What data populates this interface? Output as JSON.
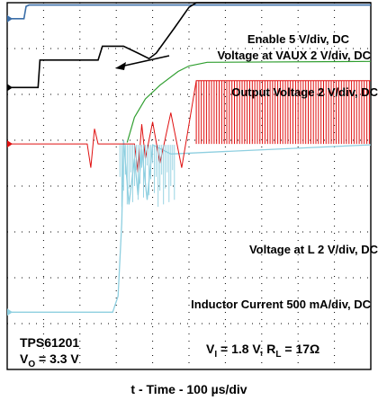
{
  "chart_data": {
    "type": "line",
    "title": "",
    "xlabel": "t - Time - 100 µs/div",
    "ylabel": "",
    "grid": true,
    "xlim": [
      0,
      10
    ],
    "ylim": [
      0,
      8
    ],
    "series": [
      {
        "name": "Enable 5 V/div, DC",
        "color": "#3a6ea8",
        "points": [
          [
            0,
            7.65
          ],
          [
            0.46,
            7.65
          ],
          [
            0.52,
            7.92
          ],
          [
            0.6,
            7.95
          ],
          [
            10,
            7.95
          ]
        ]
      },
      {
        "name": "Voltage at VAUX 2 V/div, DC",
        "color": "#000000",
        "points": [
          [
            0,
            6.15
          ],
          [
            0.85,
            6.15
          ],
          [
            0.9,
            6.75
          ],
          [
            2.5,
            6.75
          ],
          [
            2.62,
            7.05
          ],
          [
            3.2,
            7.05
          ],
          [
            3.6,
            6.9
          ],
          [
            3.9,
            6.78
          ],
          [
            4.1,
            6.9
          ],
          [
            4.6,
            7.45
          ],
          [
            5.0,
            7.9
          ],
          [
            5.2,
            8.0
          ],
          [
            10,
            8.0
          ]
        ]
      },
      {
        "name": "Output Voltage 2 V/div, DC",
        "color": "#2f9e2f",
        "points": [
          [
            3.3,
            4.95
          ],
          [
            3.5,
            5.5
          ],
          [
            3.8,
            5.9
          ],
          [
            4.2,
            6.2
          ],
          [
            4.7,
            6.5
          ],
          [
            5.0,
            6.62
          ],
          [
            5.5,
            6.7
          ],
          [
            10,
            6.72
          ]
        ]
      },
      {
        "name": "Voltage at L 2 V/div, DC",
        "color": "#e01010",
        "points": [
          [
            0,
            4.92
          ],
          [
            2.2,
            4.92
          ],
          [
            2.3,
            4.4
          ],
          [
            2.4,
            5.25
          ],
          [
            2.5,
            4.92
          ],
          [
            3.5,
            4.92
          ],
          [
            3.6,
            4.3
          ],
          [
            3.7,
            5.35
          ],
          [
            3.8,
            4.6
          ],
          [
            4.0,
            5.4
          ],
          [
            4.2,
            4.5
          ],
          [
            4.5,
            5.6
          ],
          [
            4.8,
            4.4
          ],
          [
            5.2,
            6.3
          ],
          [
            10,
            6.3
          ]
        ]
      },
      {
        "name": "Inductor Current 500 mA/div, DC",
        "color": "#8ecfe0",
        "points": [
          [
            0,
            1.25
          ],
          [
            2.9,
            1.25
          ],
          [
            3.05,
            1.6
          ],
          [
            3.15,
            3.2
          ],
          [
            3.2,
            5.0
          ],
          [
            3.35,
            3.6
          ],
          [
            3.5,
            4.6
          ],
          [
            3.6,
            3.8
          ],
          [
            3.7,
            4.8
          ],
          [
            3.85,
            3.7
          ],
          [
            4.0,
            4.9
          ],
          [
            4.5,
            4.7
          ],
          [
            10,
            4.9
          ]
        ]
      }
    ],
    "annotations": [
      "Enable 5 V/div, DC",
      "Voltage at VAUX 2 V/div, DC",
      "Output Voltage 2 V/div, DC",
      "Voltage at L 2 V/div, DC",
      "Inductor Current 500 mA/div, DC",
      "TPS61201",
      "VO = 3.3 V",
      "VI = 1.8 V, RL = 17Ω"
    ]
  },
  "labels": {
    "enable": "Enable 5 V/div, DC",
    "vaux": "Voltage at VAUX 2 V/div, DC",
    "vout": "Output Voltage 2 V/div, DC",
    "vl": "Voltage at L 2 V/div, DC",
    "il": "Inductor Current 500 mA/div, DC",
    "part": "TPS61201",
    "vo_main": "V",
    "vo_sub": "O",
    "vo_val": " = 3.3 V",
    "vi_main": "V",
    "vi_sub": "I",
    "vi_mid": " = 1.8 V, R",
    "rl_sub": "L",
    "rl_val": " = 17Ω",
    "xtitle": "t - Time - 100 µs/div"
  }
}
